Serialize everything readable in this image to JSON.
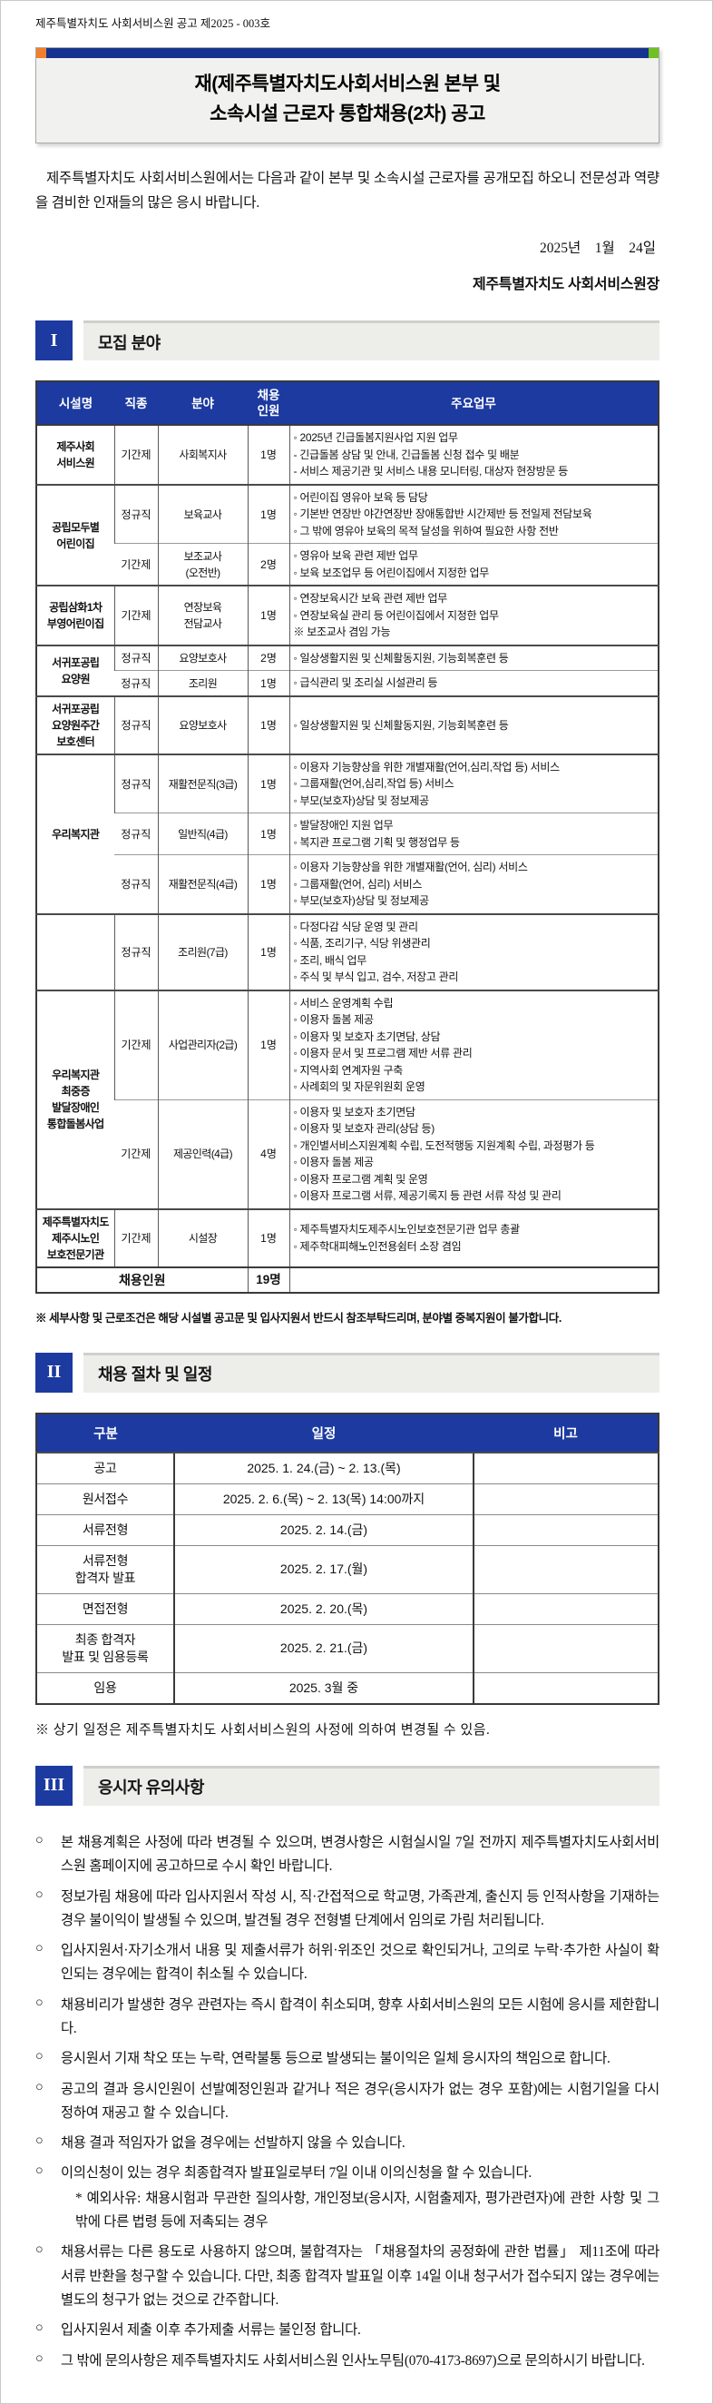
{
  "page": {
    "doc_number": "제주특별자치도 사회서비스원 공고 제2025 - 003호",
    "title_line1": "재(제주특별자치도사회서비스원 본부 및",
    "title_line2": "소속시설 근로자 통합채용(2차) 공고",
    "intro": "제주특별자치도 사회서비스원에서는 다음과 같이 본부 및 소속시설 근로자를 공개모집 하오니 전문성과 역량을 겸비한 인재들의 많은 응시 바랍니다.",
    "date": "2025년    1월    24일",
    "signer": "제주특별자치도 사회서비스원장"
  },
  "colors": {
    "accent_blue": "#1c3aa0",
    "title_bar_navy": "#16338f",
    "title_bar_orange": "#f07f2d",
    "title_bar_green": "#6fc121",
    "section_bar_gray": "#ededea"
  },
  "sections": [
    {
      "num": "I",
      "title": "모집 분야"
    },
    {
      "num": "II",
      "title": "채용 절차 및 일정"
    },
    {
      "num": "III",
      "title": "응시자 유의사항"
    }
  ],
  "recruit_table": {
    "headers": [
      "시설명",
      "직종",
      "분야",
      "채용\n인원",
      "주요업무"
    ],
    "groups": [
      {
        "facility": "제주사회\n서비스원",
        "rows": [
          {
            "type": "기간제",
            "field": "사회복지사",
            "count": "1명",
            "duties": [
              "◦ 2025년 긴급돌봄지원사업 지원 업무",
              "- 긴급돌봄 상담 및 안내, 긴급돌봄 신청 접수 및 배분",
              "- 서비스 제공기관 및 서비스 내용 모니터링, 대상자 현장방문 등"
            ]
          }
        ]
      },
      {
        "facility": "공립모두별\n어린이집",
        "rows": [
          {
            "type": "정규직",
            "field": "보육교사",
            "count": "1명",
            "duties": [
              "◦ 어린이집 영유아 보육 등 담당",
              "◦ 기본반 연장반 야간연장반 장애통합반 시간제반 등 전일제 전담보육",
              "◦ 그 밖에 영유아 보육의 목적 달성을 위하여 필요한 사항 전반"
            ]
          },
          {
            "type": "기간제",
            "field": "보조교사\n(오전반)",
            "count": "2명",
            "duties": [
              "◦ 영유아 보육 관련 제반 업무",
              "◦ 보육 보조업무 등 어린이집에서 지정한 업무"
            ]
          }
        ]
      },
      {
        "facility": "공립삼화1차\n부영어린이집",
        "rows": [
          {
            "type": "기간제",
            "field": "연장보육\n전담교사",
            "count": "1명",
            "duties": [
              "◦ 연장보육시간 보육 관련 제반 업무",
              "◦ 연장보육실 관리 등 어린이집에서 지정한 업무",
              "※ 보조교사 겸임 가능"
            ]
          }
        ]
      },
      {
        "facility": "서귀포공립\n요양원",
        "rows": [
          {
            "type": "정규직",
            "field": "요양보호사",
            "count": "2명",
            "duties": [
              "◦ 일상생활지원 및 신체활동지원, 기능회복훈련 등"
            ]
          },
          {
            "type": "정규직",
            "field": "조리원",
            "count": "1명",
            "duties": [
              "◦ 급식관리 및 조리실 시설관리 등"
            ]
          }
        ]
      },
      {
        "facility": "서귀포공립\n요양원주간\n보호센터",
        "rows": [
          {
            "type": "정규직",
            "field": "요양보호사",
            "count": "1명",
            "duties": [
              "◦ 일상생활지원 및 신체활동지원, 기능회복훈련 등"
            ]
          }
        ]
      },
      {
        "facility": "우리복지관",
        "rows": [
          {
            "type": "정규직",
            "field": "재활전문직(3급)",
            "count": "1명",
            "duties": [
              "◦ 이용자 기능향상을 위한 개별재활(언어,심리,작업 등) 서비스",
              "◦ 그룹재활(언어,심리,작업 등) 서비스",
              "◦ 부모(보호자)상담 및 정보제공"
            ]
          },
          {
            "type": "정규직",
            "field": "일반직(4급)",
            "count": "1명",
            "duties": [
              "◦ 발달장애인 지원 업무",
              "◦ 복지관 프로그램 기획 및 행정업무 등"
            ]
          },
          {
            "type": "정규직",
            "field": "재활전문직(4급)",
            "count": "1명",
            "duties": [
              "◦ 이용자 기능향상을 위한 개별재활(언어, 심리) 서비스",
              "◦ 그룹재활(언어, 심리) 서비스",
              "◦ 부모(보호자)상담 및 정보제공"
            ]
          }
        ]
      },
      {
        "facility": "",
        "rows": [
          {
            "type": "정규직",
            "field": "조리원(7급)",
            "count": "1명",
            "duties": [
              "◦ 다정다감 식당 운영 및 관리",
              "◦ 식품, 조리기구, 식당 위생관리",
              "◦ 조리, 배식 업무",
              "◦ 주식 및 부식 입고, 검수, 저장고 관리"
            ]
          }
        ]
      },
      {
        "facility": "우리복지관\n최중증\n발달장애인\n통합돌봄사업",
        "rows": [
          {
            "type": "기간제",
            "field": "사업관리자(2급)",
            "count": "1명",
            "duties": [
              "◦ 서비스 운영계획 수립",
              "◦ 이용자 돌봄 제공",
              "◦ 이용자 및 보호자 초기면담, 상담",
              "◦ 이용자 문서 및 프로그램 제반 서류 관리",
              "◦ 지역사회 연계자원 구축",
              "◦ 사례회의 및 자문위원회 운영"
            ]
          },
          {
            "type": "기간제",
            "field": "제공인력(4급)",
            "count": "4명",
            "duties": [
              "◦ 이용자 및 보호자 초기면담",
              "◦ 이용자 및 보호자 관리(상담 등)",
              "◦ 개인별서비스지원계획 수립, 도전적행동 지원계획 수립, 과정평가 등",
              "◦ 이용자 돌봄 제공",
              "◦ 이용자 프로그램 계획 및 운영",
              "◦ 이용자 프로그램 서류, 제공기록지 등 관련 서류 작성 및 관리"
            ]
          }
        ]
      },
      {
        "facility": "제주특별자치도\n제주시노인\n보호전문기관",
        "rows": [
          {
            "type": "기간제",
            "field": "시설장",
            "count": "1명",
            "duties": [
              "◦ 제주특별자치도제주시노인보호전문기관 업무 총괄",
              "◦ 제주학대피해노인전용쉼터 소장 겸임"
            ]
          }
        ]
      }
    ],
    "footer": {
      "label": "채용인원",
      "total": "19명"
    }
  },
  "recruit_note": "※ 세부사항 및 근로조건은 해당 시설별 공고문 및 입사지원서 반드시 참조부탁드리며, 분야별 중복지원이 불가합니다.",
  "schedule_table": {
    "headers": [
      "구분",
      "일정",
      "비고"
    ],
    "rows": [
      {
        "gubun": "공고",
        "iljeong": "2025. 1. 24.(금) ~ 2. 13.(목)",
        "bigo": ""
      },
      {
        "gubun": "원서접수",
        "iljeong": "2025. 2. 6.(목) ~  2. 13(목) 14:00까지",
        "bigo": ""
      },
      {
        "gubun": "서류전형",
        "iljeong": "2025. 2. 14.(금)",
        "bigo": ""
      },
      {
        "gubun": "서류전형\n합격자 발표",
        "iljeong": "2025. 2. 17.(월)",
        "bigo": ""
      },
      {
        "gubun": "면접전형",
        "iljeong": "2025. 2. 20.(목)",
        "bigo": ""
      },
      {
        "gubun": "최종 합격자\n발표 및 임용등록",
        "iljeong": "2025. 2. 21.(금)",
        "bigo": ""
      },
      {
        "gubun": "임용",
        "iljeong": "2025. 3월 중",
        "bigo": ""
      }
    ]
  },
  "schedule_note": "※ 상기 일정은 제주특별자치도 사회서비스원의 사정에 의하여 변경될 수 있음.",
  "notices": [
    {
      "text": "본 채용계획은 사정에 따라 변경될 수 있으며, 변경사항은 시험실시일 7일 전까지 제주특별자치도사회서비스원 홈페이지에 공고하므로 수시 확인 바랍니다."
    },
    {
      "text": "정보가림 채용에 따라 입사지원서 작성 시, 직·간접적으로 학교명, 가족관계, 출신지 등 인적사항을 기재하는 경우 불이익이 발생될 수 있으며, 발견될 경우 전형별 단계에서 임의로 가림 처리됩니다."
    },
    {
      "text": "입사지원서·자기소개서 내용 및 제출서류가 허위·위조인 것으로 확인되거나, 고의로 누락·추가한 사실이 확인되는 경우에는 합격이 취소될 수 있습니다."
    },
    {
      "text": "채용비리가 발생한 경우 관련자는 즉시 합격이 취소되며, 향후 사회서비스원의 모든 시험에 응시를 제한합니다."
    },
    {
      "text": "응시원서 기재 착오 또는 누락, 연락불통 등으로 발생되는 불이익은 일체 응시자의 책임으로 합니다."
    },
    {
      "text": "공고의 결과 응시인원이 선발예정인원과 같거나 적은 경우(응시자가 없는 경우 포함)에는 시험기일을 다시 정하여 재공고 할 수 있습니다."
    },
    {
      "text": "채용 결과 적임자가 없을 경우에는 선발하지 않을 수 있습니다."
    },
    {
      "text": "이의신청이 있는 경우 최종합격자 발표일로부터 7일 이내 이의신청을 할 수 있습니다.",
      "sub": "* 예외사유: 채용시험과 무관한 질의사항, 개인정보(응시자, 시험출제자, 평가관련자)에 관한 사항 및 그 밖에 다른 법령 등에 저촉되는 경우"
    },
    {
      "text": "채용서류는 다른 용도로 사용하지 않으며, 불합격자는 「채용절차의 공정화에 관한 법률」 제11조에 따라 서류 반환을 청구할 수 있습니다. 다만, 최종 합격자 발표일 이후 14일 이내 청구서가 접수되지 않는 경우에는 별도의 청구가 없는 것으로 간주합니다."
    },
    {
      "text": "입사지원서 제출 이후 추가제출 서류는 불인정 합니다."
    },
    {
      "text": "그 밖에 문의사항은 제주특별자치도 사회서비스원 인사노무팀(070-4173-8697)으로  문의하시기 바랍니다."
    }
  ]
}
